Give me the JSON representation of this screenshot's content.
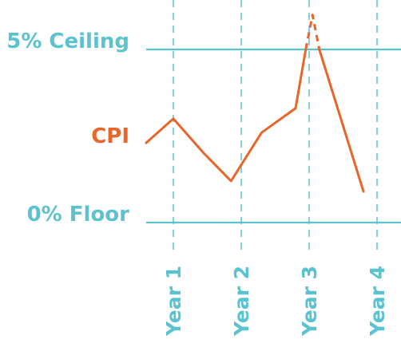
{
  "chart_data": {
    "type": "line",
    "title": "",
    "xlabel": "",
    "ylabel": "",
    "ylim": [
      0,
      5
    ],
    "xlim": [
      0.6,
      4.3
    ],
    "reference_lines": [
      {
        "label": "5% Ceiling",
        "value": 5
      },
      {
        "label": "0% Floor",
        "value": 0
      }
    ],
    "categories": [
      "Year 1",
      "Year 2",
      "Year 3",
      "Year 4"
    ],
    "series": [
      {
        "name": "CPI",
        "points": [
          {
            "x": 0.6,
            "y": 2.3
          },
          {
            "x": 1.0,
            "y": 3.0
          },
          {
            "x": 1.45,
            "y": 2.0
          },
          {
            "x": 1.85,
            "y": 1.2
          },
          {
            "x": 2.3,
            "y": 2.6
          },
          {
            "x": 2.8,
            "y": 3.3
          },
          {
            "x": 2.95,
            "y": 5.0
          },
          {
            "x": 3.05,
            "y": 6.0
          },
          {
            "x": 3.15,
            "y": 5.0
          },
          {
            "x": 3.8,
            "y": 0.9
          }
        ],
        "dashed_above_ceiling": true
      }
    ],
    "grid": "vertical dashed at each year",
    "legend": "none; series label at left"
  },
  "colors": {
    "teal": "#5bc2cf",
    "orange": "#e8652c"
  }
}
